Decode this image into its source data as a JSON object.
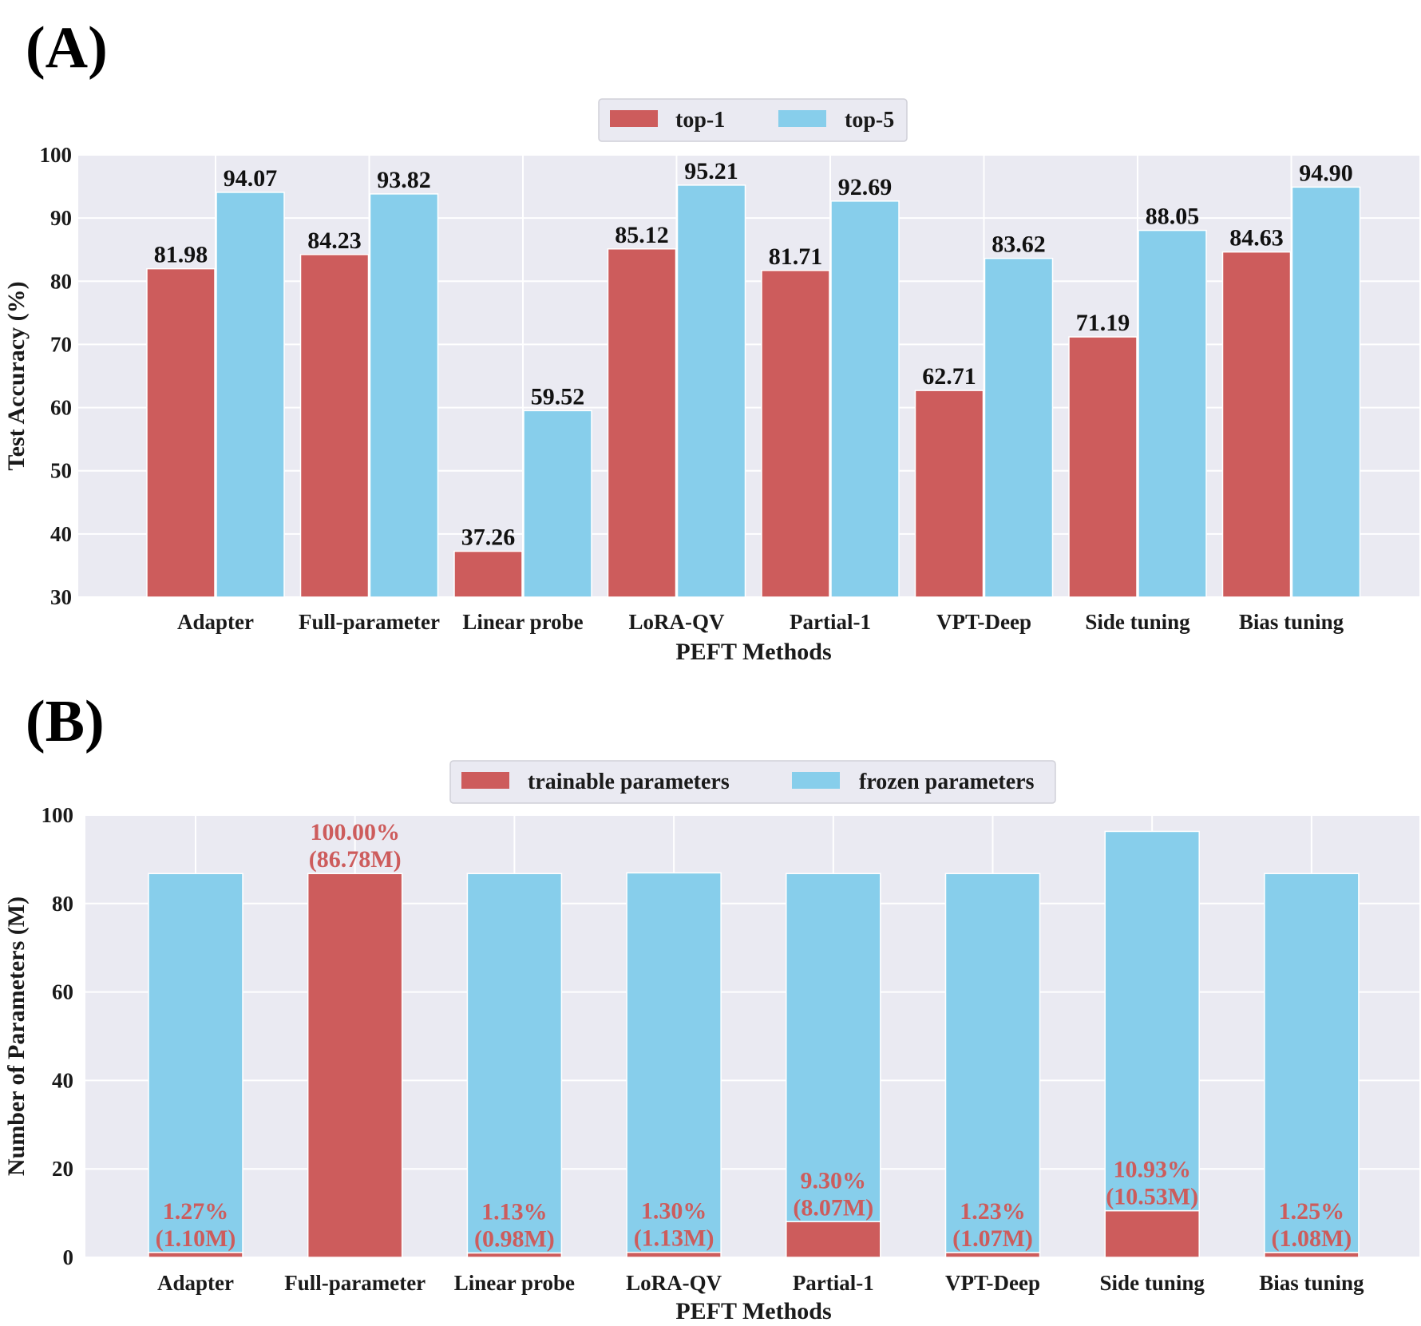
{
  "panels": {
    "a_label": "(A)",
    "b_label": "(B)"
  },
  "colors": {
    "top1": "#cd5c5c",
    "top5": "#87ceeb",
    "plot_bg": "#eaeaf2",
    "grid": "#ffffff",
    "label_b": "#cd5c5c"
  },
  "chart_data": [
    {
      "type": "bar",
      "title": "",
      "xlabel": "PEFT Methods",
      "ylabel": "Test Accuracy (%)",
      "ylim": [
        30,
        100
      ],
      "yticks": [
        "30",
        "40",
        "50",
        "60",
        "70",
        "80",
        "90",
        "100"
      ],
      "legend_placement": "top-center",
      "grid": true,
      "categories": [
        "Adapter",
        "Full-parameter",
        "Linear probe",
        "LoRA-QV",
        "Partial-1",
        "VPT-Deep",
        "Side tuning",
        "Bias tuning"
      ],
      "series": [
        {
          "name": "top-1",
          "values": [
            81.98,
            84.23,
            37.26,
            85.12,
            81.71,
            62.71,
            71.19,
            84.63
          ],
          "labels": [
            "81.98",
            "84.23",
            "37.26",
            "85.12",
            "81.71",
            "62.71",
            "71.19",
            "84.63"
          ]
        },
        {
          "name": "top-5",
          "values": [
            94.07,
            93.82,
            59.52,
            95.21,
            92.69,
            83.62,
            88.05,
            94.9
          ],
          "labels": [
            "94.07",
            "93.82",
            "59.52",
            "95.21",
            "92.69",
            "83.62",
            "88.05",
            "94.90"
          ]
        }
      ]
    },
    {
      "type": "bar",
      "stacked": true,
      "title": "",
      "xlabel": "PEFT Methods",
      "ylabel": "Number of Parameters (M)",
      "ylim": [
        0,
        100
      ],
      "yticks": [
        "0",
        "20",
        "40",
        "60",
        "80",
        "100"
      ],
      "legend_placement": "top-center",
      "grid": true,
      "categories": [
        "Adapter",
        "Full-parameter",
        "Linear probe",
        "LoRA-QV",
        "Partial-1",
        "VPT-Deep",
        "Side tuning",
        "Bias tuning"
      ],
      "series": [
        {
          "name": "trainable parameters",
          "values": [
            1.1,
            86.78,
            0.98,
            1.13,
            8.07,
            1.07,
            10.53,
            1.08
          ]
        },
        {
          "name": "frozen parameters",
          "values": [
            85.68,
            0,
            85.8,
            85.8,
            78.71,
            85.71,
            85.78,
            85.7
          ]
        }
      ],
      "annotations": [
        {
          "pct": "1.27%",
          "abs": "(1.10M)"
        },
        {
          "pct": "100.00%",
          "abs": "(86.78M)"
        },
        {
          "pct": "1.13%",
          "abs": "(0.98M)"
        },
        {
          "pct": "1.30%",
          "abs": "(1.13M)"
        },
        {
          "pct": "9.30%",
          "abs": "(8.07M)"
        },
        {
          "pct": "1.23%",
          "abs": "(1.07M)"
        },
        {
          "pct": "10.93%",
          "abs": "(10.53M)"
        },
        {
          "pct": "1.25%",
          "abs": "(1.08M)"
        }
      ]
    }
  ]
}
